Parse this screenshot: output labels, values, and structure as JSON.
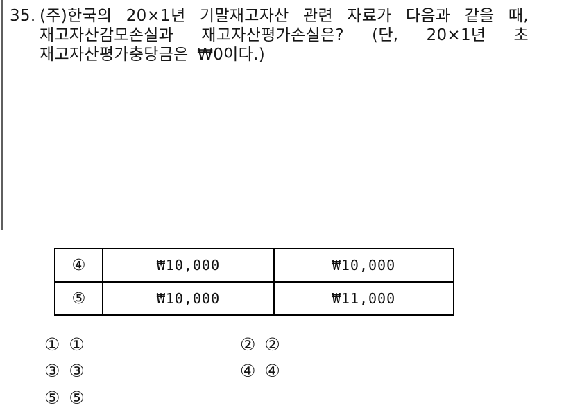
{
  "question": {
    "number": "35.",
    "text": "(주)한국의 20×1년 기말재고자산 관련 자료가 다음과 같을 때, 재고자산감모손실과 재고자산평가손실은? (단, 20×1년 초 재고자산평가충당금은 ₩0이다.)"
  },
  "table": {
    "rows": [
      {
        "label": "④",
        "shrinkage_loss": "₩10,000",
        "valuation_loss": "₩10,000"
      },
      {
        "label": "⑤",
        "shrinkage_loss": "₩10,000",
        "valuation_loss": "₩11,000"
      }
    ]
  },
  "options": [
    {
      "marker": "①",
      "value": "①"
    },
    {
      "marker": "②",
      "value": "②"
    },
    {
      "marker": "③",
      "value": "③"
    },
    {
      "marker": "④",
      "value": "④"
    },
    {
      "marker": "⑤",
      "value": "⑤"
    }
  ],
  "colors": {
    "background": "#ffffff",
    "text": "#151515",
    "table_border": "#000000",
    "margin_rule": "#5f5f5f"
  }
}
